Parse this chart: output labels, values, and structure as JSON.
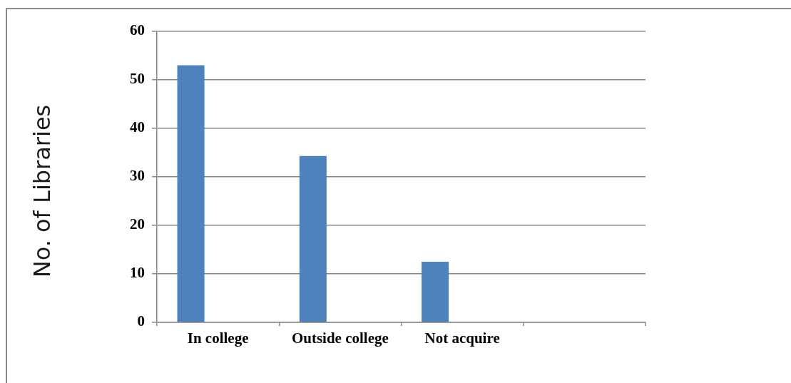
{
  "chart_data": {
    "type": "bar",
    "ylabel": "No. of Libraries",
    "categories": [
      "In college",
      "Outside college",
      "Not acquire",
      null
    ],
    "values": [
      53,
      34.3,
      12.5,
      null
    ],
    "color": "#4f81bd",
    "ylim": [
      0,
      60
    ],
    "yticks": [
      0,
      10,
      20,
      30,
      40,
      50,
      60
    ],
    "grid": "y"
  }
}
